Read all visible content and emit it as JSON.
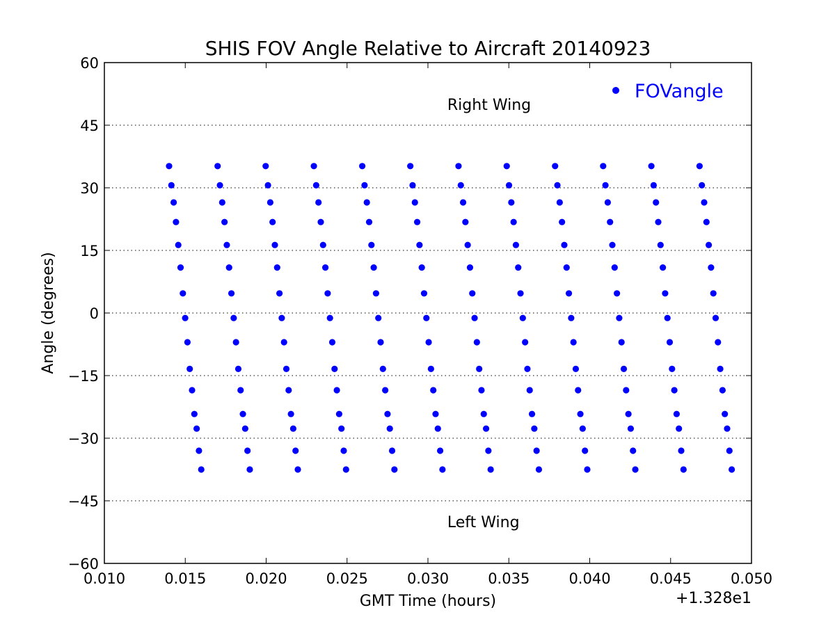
{
  "chart_data": {
    "type": "scatter",
    "title": "SHIS FOV Angle Relative to Aircraft 20140923",
    "xlabel": "GMT Time (hours)",
    "ylabel": "Angle (degrees)",
    "x_offset_label": "+1.328e1",
    "xlim": [
      0.01,
      0.05
    ],
    "ylim": [
      -60,
      60
    ],
    "xticks": [
      "0.010",
      "0.015",
      "0.020",
      "0.025",
      "0.030",
      "0.035",
      "0.040",
      "0.045",
      "0.050"
    ],
    "yticks": [
      "60",
      "45",
      "30",
      "15",
      "0",
      "−15",
      "−30",
      "−45",
      "−60"
    ],
    "grid": "horizontal-dotted",
    "legend_position": "top-right",
    "annotations": [
      {
        "text": "Right Wing",
        "x": 0.0312,
        "y": 50
      },
      {
        "text": "Left Wing",
        "x": 0.0312,
        "y": -50
      }
    ],
    "series": [
      {
        "name": "FOVangle",
        "color": "#0000ff",
        "angles": [
          35.2,
          30.6,
          26.5,
          21.8,
          16.3,
          10.9,
          4.7,
          -1.2,
          -7.0,
          -13.4,
          -18.5,
          -24.2,
          -27.7,
          -33.0,
          -37.5
        ],
        "scan_start_x": [
          0.014,
          0.017,
          0.01997,
          0.02295,
          0.02594,
          0.02891,
          0.03189,
          0.03487,
          0.03786,
          0.04083,
          0.04381,
          0.04679
        ],
        "scan_step_x": 0.000142
      }
    ]
  }
}
